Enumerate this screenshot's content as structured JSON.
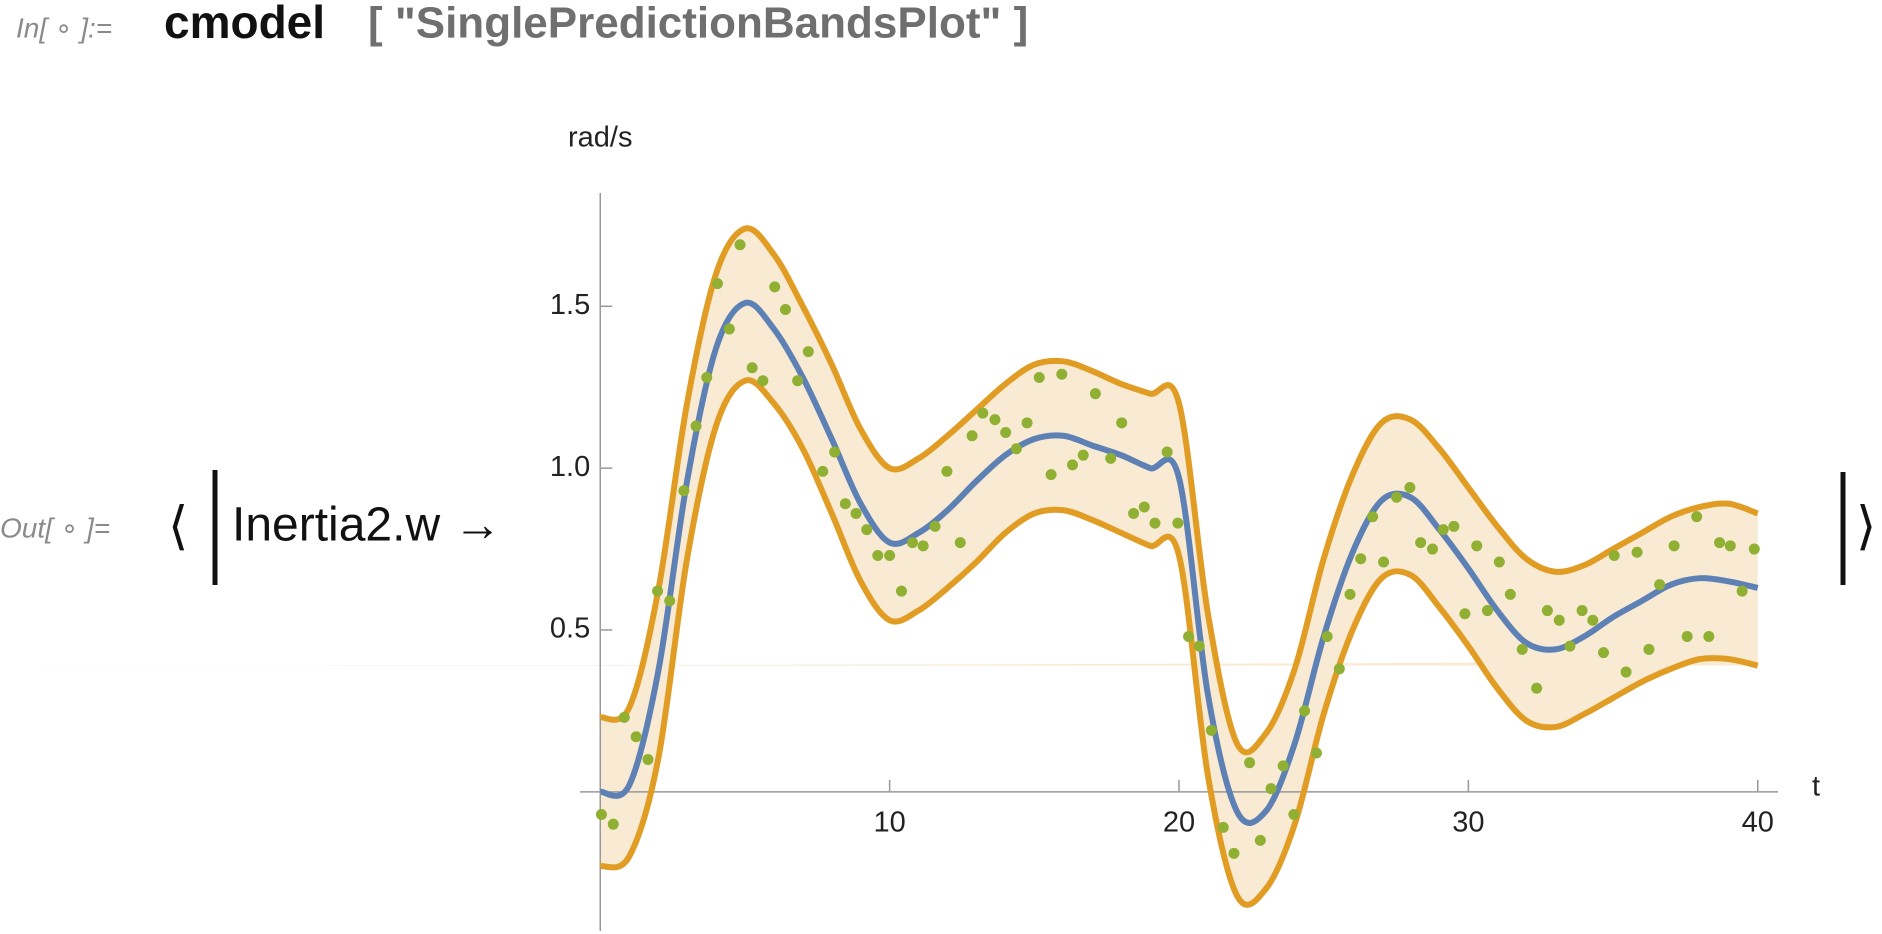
{
  "notebook": {
    "input_label": "In[ ∘ ]:=",
    "input_code": "cmodel",
    "input_args": "[ \"SinglePredictionBandsPlot\" ]",
    "output_label": "Out[ ∘ ]=",
    "open_bracket": "⟨",
    "association_key": "Inertia2.w →",
    "close_bracket": "⟩"
  },
  "chart_data": {
    "type": "line",
    "x_label": "t",
    "y_label": "rad/s",
    "x": [
      0,
      1,
      2,
      3,
      4,
      5,
      6,
      7,
      8,
      9,
      10,
      11,
      12,
      13,
      14,
      15,
      16,
      17,
      18,
      19,
      20,
      21,
      22,
      23,
      24,
      25,
      26,
      27,
      28,
      29,
      30,
      31,
      32,
      33,
      34,
      35,
      36,
      37,
      38,
      39,
      40
    ],
    "series": [
      {
        "color": "#5e81b5",
        "values": [
          0,
          0.02,
          0.37,
          0.96,
          1.37,
          1.51,
          1.43,
          1.28,
          1.09,
          0.89,
          0.77,
          0.8,
          0.87,
          0.96,
          1.04,
          1.09,
          1.1,
          1.07,
          1.04,
          1,
          0.97,
          0.3,
          -0.06,
          -0.06,
          0.15,
          0.48,
          0.74,
          0.9,
          0.91,
          0.81,
          0.69,
          0.56,
          0.46,
          0.44,
          0.48,
          0.54,
          0.59,
          0.64,
          0.66,
          0.65,
          0.63
        ]
      },
      {
        "color": "#e19c24",
        "values": [
          0.23,
          0.26,
          0.62,
          1.2,
          1.6,
          1.74,
          1.66,
          1.5,
          1.32,
          1.12,
          1,
          1.03,
          1.1,
          1.18,
          1.26,
          1.32,
          1.33,
          1.3,
          1.26,
          1.23,
          1.2,
          0.55,
          0.15,
          0.18,
          0.38,
          0.72,
          0.98,
          1.14,
          1.15,
          1.06,
          0.94,
          0.82,
          0.72,
          0.68,
          0.7,
          0.75,
          0.8,
          0.85,
          0.88,
          0.89,
          0.86
        ]
      },
      {
        "color": "#e19c24",
        "values": [
          -0.23,
          -0.2,
          0.1,
          0.72,
          1.13,
          1.27,
          1.2,
          1.06,
          0.86,
          0.65,
          0.53,
          0.56,
          0.63,
          0.71,
          0.8,
          0.86,
          0.87,
          0.84,
          0.8,
          0.76,
          0.73,
          0.05,
          -0.32,
          -0.3,
          -0.1,
          0.24,
          0.5,
          0.66,
          0.67,
          0.57,
          0.45,
          0.32,
          0.22,
          0.2,
          0.24,
          0.29,
          0.34,
          0.38,
          0.41,
          0.41,
          0.39
        ]
      }
    ],
    "band_fill": "#f9ead3",
    "points": {
      "color": "#8fb032",
      "x": [
        0.04,
        0.45,
        0.83,
        1.24,
        1.65,
        1.98,
        2.4,
        2.89,
        3.31,
        3.68,
        4.05,
        4.46,
        4.83,
        5.25,
        5.62,
        6.03,
        6.4,
        6.82,
        7.19,
        7.69,
        8.1,
        8.47,
        8.84,
        9.21,
        9.59,
        10,
        10.41,
        10.79,
        11.16,
        11.57,
        11.98,
        12.44,
        12.85,
        13.22,
        13.64,
        14.01,
        14.38,
        14.75,
        15.17,
        15.58,
        15.95,
        16.32,
        16.69,
        17.11,
        17.64,
        18.02,
        18.43,
        18.8,
        19.17,
        19.59,
        19.96,
        20.33,
        20.7,
        21.12,
        21.53,
        21.9,
        22.44,
        22.81,
        23.18,
        23.6,
        23.97,
        24.34,
        24.75,
        25.12,
        25.54,
        25.91,
        26.28,
        26.69,
        27.07,
        27.52,
        27.98,
        28.35,
        28.76,
        29.13,
        29.5,
        29.88,
        30.29,
        30.66,
        31.07,
        31.45,
        31.86,
        32.36,
        32.73,
        33.14,
        33.51,
        33.93,
        34.3,
        34.67,
        35.04,
        35.45,
        35.83,
        36.24,
        36.61,
        37.11,
        37.56,
        37.89,
        38.31,
        38.68,
        39.05,
        39.46,
        39.88
      ],
      "y": [
        -0.07,
        -0.1,
        0.23,
        0.17,
        0.1,
        0.62,
        0.59,
        0.93,
        1.13,
        1.28,
        1.57,
        1.43,
        1.69,
        1.31,
        1.27,
        1.56,
        1.49,
        1.27,
        1.36,
        0.99,
        1.05,
        0.89,
        0.86,
        0.81,
        0.73,
        0.73,
        0.62,
        0.77,
        0.76,
        0.82,
        0.99,
        0.77,
        1.1,
        1.17,
        1.15,
        1.11,
        1.06,
        1.14,
        1.28,
        0.98,
        1.29,
        1.01,
        1.04,
        1.23,
        1.03,
        1.14,
        0.86,
        0.88,
        0.83,
        1.05,
        0.83,
        0.48,
        0.45,
        0.19,
        -0.11,
        -0.19,
        0.09,
        -0.15,
        0.01,
        0.08,
        -0.07,
        0.25,
        0.12,
        0.48,
        0.38,
        0.61,
        0.72,
        0.85,
        0.71,
        0.91,
        0.94,
        0.77,
        0.75,
        0.81,
        0.82,
        0.55,
        0.76,
        0.56,
        0.71,
        0.61,
        0.44,
        0.32,
        0.56,
        0.53,
        0.45,
        0.56,
        0.53,
        0.43,
        0.73,
        0.37,
        0.74,
        0.44,
        0.64,
        0.76,
        0.48,
        0.85,
        0.48,
        0.77,
        0.76,
        0.62,
        0.75
      ]
    },
    "xlim": [
      -0.7,
      40.7
    ],
    "ylim": [
      -0.43,
      1.85
    ],
    "xticks": [
      10,
      20,
      30,
      40
    ],
    "yticks": [
      0.5,
      {
        "value": 1,
        "label": "1.0"
      },
      1.5
    ]
  }
}
